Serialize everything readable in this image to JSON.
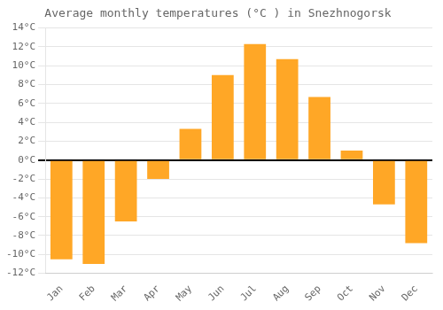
{
  "chart_data": {
    "type": "bar",
    "title": "Average monthly temperatures (°C ) in Snezhnogorsk",
    "categories": [
      "Jan",
      "Feb",
      "Mar",
      "Apr",
      "May",
      "Jun",
      "Jul",
      "Aug",
      "Sep",
      "Oct",
      "Nov",
      "Dec"
    ],
    "values": [
      -10.5,
      -11.0,
      -6.5,
      -2.0,
      3.3,
      9.0,
      12.3,
      10.7,
      6.7,
      1.0,
      -4.7,
      -8.8
    ],
    "color": "#FFA726",
    "ylim": [
      -12,
      14
    ],
    "yticks": [
      {
        "value": -12,
        "label": "-12°C"
      },
      {
        "value": -10,
        "label": "-10°C"
      },
      {
        "value": -8,
        "label": "-8°C"
      },
      {
        "value": -6,
        "label": "-6°C"
      },
      {
        "value": -4,
        "label": "-4°C"
      },
      {
        "value": -2,
        "label": "-2°C"
      },
      {
        "value": 0,
        "label": "0°C"
      },
      {
        "value": 2,
        "label": "2°C"
      },
      {
        "value": 4,
        "label": "4°C"
      },
      {
        "value": 6,
        "label": "6°C"
      },
      {
        "value": 8,
        "label": "8°C"
      },
      {
        "value": 10,
        "label": "10°C"
      },
      {
        "value": 12,
        "label": "12°C"
      },
      {
        "value": 14,
        "label": "14°C"
      }
    ],
    "grid": true
  }
}
